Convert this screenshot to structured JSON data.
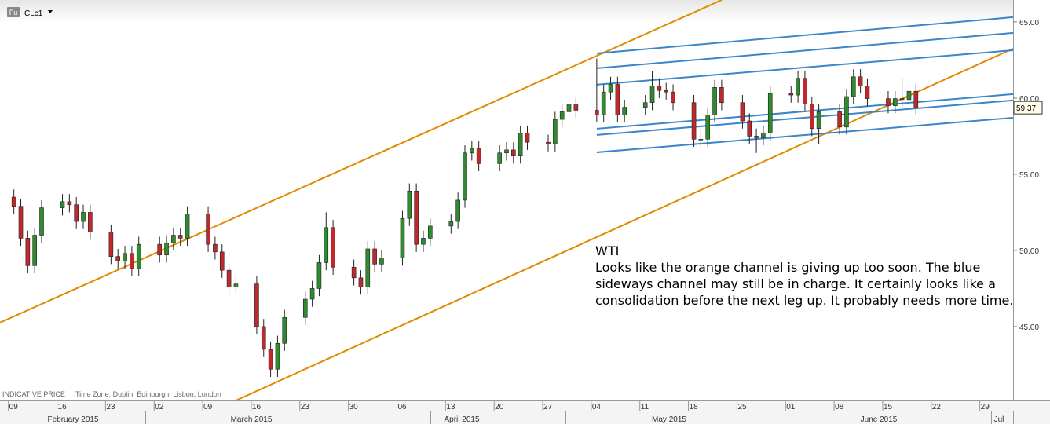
{
  "chart_data": {
    "type": "candlestick",
    "badge": "Fu",
    "symbol": "CLc1",
    "footer_left": "INDICATIVE PRICE",
    "timezone": "Time Zone: Dublin, Edinburgh, Lisbon, London",
    "annotation": {
      "title": "WTI",
      "text": "Looks like the orange channel is giving up too soon. The blue sideways channel may still be in charge. It certainly looks like a consolidation before the next leg up. It probably needs more time."
    },
    "up_color": "#2e8b2e",
    "down_color": "#c0282b",
    "xlim": [
      "2015-02-07",
      "2015-07-03"
    ],
    "ylim": [
      40.15,
      66.44
    ],
    "yticks": [
      {
        "value": 45,
        "label": "45.00"
      },
      {
        "value": 50,
        "label": "50.00"
      },
      {
        "value": 55,
        "label": "55.00"
      },
      {
        "value": 60,
        "label": "60.00"
      },
      {
        "value": 65,
        "label": "65.00"
      }
    ],
    "xticks": [
      {
        "value": "2015-02-09",
        "label": "09"
      },
      {
        "value": "2015-02-16",
        "label": "16"
      },
      {
        "value": "2015-02-23",
        "label": "23"
      },
      {
        "value": "2015-03-02",
        "label": "02"
      },
      {
        "value": "2015-03-09",
        "label": "09"
      },
      {
        "value": "2015-03-16",
        "label": "16"
      },
      {
        "value": "2015-03-23",
        "label": "23"
      },
      {
        "value": "2015-03-30",
        "label": "30"
      },
      {
        "value": "2015-04-06",
        "label": "06"
      },
      {
        "value": "2015-04-13",
        "label": "13"
      },
      {
        "value": "2015-04-20",
        "label": "20"
      },
      {
        "value": "2015-04-27",
        "label": "27"
      },
      {
        "value": "2015-05-04",
        "label": "04"
      },
      {
        "value": "2015-05-11",
        "label": "11"
      },
      {
        "value": "2015-05-18",
        "label": "18"
      },
      {
        "value": "2015-05-25",
        "label": "25"
      },
      {
        "value": "2015-06-01",
        "label": "01"
      },
      {
        "value": "2015-06-08",
        "label": "08"
      },
      {
        "value": "2015-06-15",
        "label": "15"
      },
      {
        "value": "2015-06-22",
        "label": "22"
      },
      {
        "value": "2015-06-29",
        "label": "29"
      }
    ],
    "months": [
      "February 2015",
      "March 2015",
      "April 2015",
      "May 2015",
      "June 2015",
      "Jul"
    ],
    "x": [
      "2015-02-09",
      "2015-02-10",
      "2015-02-11",
      "2015-02-12",
      "2015-02-13",
      "2015-02-16",
      "2015-02-17",
      "2015-02-18",
      "2015-02-19",
      "2015-02-20",
      "2015-02-23",
      "2015-02-24",
      "2015-02-25",
      "2015-02-26",
      "2015-02-27",
      "2015-03-02",
      "2015-03-03",
      "2015-03-04",
      "2015-03-05",
      "2015-03-06",
      "2015-03-09",
      "2015-03-10",
      "2015-03-11",
      "2015-03-12",
      "2015-03-13",
      "2015-03-16",
      "2015-03-17",
      "2015-03-18",
      "2015-03-19",
      "2015-03-20",
      "2015-03-23",
      "2015-03-24",
      "2015-03-25",
      "2015-03-26",
      "2015-03-27",
      "2015-03-30",
      "2015-03-31",
      "2015-04-01",
      "2015-04-02",
      "2015-04-03",
      "2015-04-06",
      "2015-04-07",
      "2015-04-08",
      "2015-04-09",
      "2015-04-10",
      "2015-04-13",
      "2015-04-14",
      "2015-04-15",
      "2015-04-16",
      "2015-04-17",
      "2015-04-20",
      "2015-04-21",
      "2015-04-22",
      "2015-04-23",
      "2015-04-24",
      "2015-04-27",
      "2015-04-28",
      "2015-04-29",
      "2015-04-30",
      "2015-05-01",
      "2015-05-04",
      "2015-05-05",
      "2015-05-06",
      "2015-05-07",
      "2015-05-08",
      "2015-05-11",
      "2015-05-12",
      "2015-05-13",
      "2015-05-14",
      "2015-05-15",
      "2015-05-18",
      "2015-05-19",
      "2015-05-20",
      "2015-05-21",
      "2015-05-22",
      "2015-05-25",
      "2015-05-26",
      "2015-05-27",
      "2015-05-28",
      "2015-05-29",
      "2015-06-01",
      "2015-06-02",
      "2015-06-03",
      "2015-06-04",
      "2015-06-05",
      "2015-06-08",
      "2015-06-09",
      "2015-06-10",
      "2015-06-11",
      "2015-06-12",
      "2015-06-15",
      "2015-06-16",
      "2015-06-17",
      "2015-06-18",
      "2015-06-19"
    ],
    "open": [
      53.5,
      52.9,
      50.8,
      49.0,
      51.0,
      52.8,
      53.2,
      53.0,
      51.9,
      52.5,
      51.2,
      49.6,
      49.3,
      49.8,
      48.8,
      50.4,
      49.7,
      50.5,
      51.0,
      50.8,
      52.4,
      50.4,
      49.9,
      48.7,
      47.6,
      47.8,
      45.0,
      43.5,
      42.2,
      43.9,
      45.6,
      46.8,
      47.5,
      49.2,
      51.5,
      48.9,
      48.2,
      47.6,
      50.1,
      49.1,
      49.5,
      52.1,
      53.9,
      50.4,
      50.8,
      51.6,
      51.9,
      53.3,
      56.4,
      56.7,
      55.7,
      56.4,
      56.6,
      56.2,
      57.7,
      57.1,
      57.0,
      58.6,
      59.1,
      59.6,
      59.2,
      58.9,
      60.4,
      60.9,
      58.9,
      59.4,
      59.7,
      60.8,
      60.5,
      60.4,
      59.7,
      57.3,
      57.3,
      58.9,
      60.7,
      59.7,
      58.5,
      57.5,
      57.4,
      57.7,
      60.3,
      60.2,
      61.3,
      59.6,
      58.0,
      59.1,
      58.1,
      60.1,
      61.4,
      60.8,
      59.96,
      59.5,
      59.97,
      59.9,
      60.45
    ],
    "high": [
      54.0,
      53.4,
      51.3,
      51.5,
      53.3,
      53.7,
      53.7,
      53.5,
      53.0,
      53.0,
      51.7,
      50.1,
      50.3,
      50.3,
      50.9,
      50.9,
      51.0,
      51.5,
      51.5,
      52.9,
      52.9,
      50.9,
      50.4,
      49.2,
      48.3,
      48.3,
      45.5,
      44.0,
      44.4,
      46.1,
      47.3,
      48.0,
      49.7,
      52.5,
      52.0,
      49.4,
      48.7,
      50.6,
      50.6,
      50.0,
      52.6,
      54.4,
      54.4,
      51.3,
      52.1,
      52.4,
      53.8,
      56.9,
      57.2,
      57.2,
      56.9,
      57.1,
      57.1,
      58.2,
      58.2,
      57.6,
      59.1,
      59.6,
      60.1,
      60.1,
      62.6,
      60.9,
      61.4,
      61.4,
      59.9,
      60.2,
      61.8,
      61.3,
      61.0,
      60.9,
      60.2,
      57.8,
      59.4,
      61.2,
      61.2,
      60.2,
      59.0,
      58.0,
      58.2,
      60.8,
      60.8,
      61.8,
      61.8,
      60.1,
      59.6,
      59.6,
      60.6,
      61.9,
      61.9,
      61.3,
      60.46,
      60.47,
      61.3,
      60.95,
      60.95
    ],
    "low": [
      52.4,
      50.3,
      48.5,
      48.5,
      50.5,
      52.3,
      52.5,
      51.4,
      51.4,
      50.7,
      49.1,
      48.8,
      48.8,
      48.3,
      48.3,
      49.2,
      49.2,
      50.0,
      50.3,
      50.3,
      49.9,
      49.4,
      48.2,
      47.1,
      47.1,
      44.5,
      43.0,
      41.7,
      41.7,
      43.4,
      45.1,
      46.3,
      47.0,
      48.7,
      48.4,
      47.7,
      47.1,
      47.1,
      48.6,
      48.6,
      49.0,
      51.6,
      49.9,
      49.9,
      50.3,
      51.1,
      51.4,
      52.8,
      55.9,
      55.2,
      55.2,
      55.9,
      55.7,
      55.7,
      56.6,
      56.5,
      56.5,
      58.1,
      58.6,
      58.7,
      58.4,
      58.4,
      59.9,
      58.4,
      58.4,
      58.9,
      59.2,
      60.0,
      59.9,
      59.2,
      56.8,
      56.8,
      56.8,
      58.4,
      59.2,
      58.0,
      57.0,
      56.4,
      56.9,
      57.2,
      59.7,
      59.7,
      59.1,
      57.5,
      57.0,
      57.6,
      57.6,
      59.6,
      60.3,
      59.46,
      59.0,
      59.0,
      59.4,
      59.4,
      58.87
    ],
    "close": [
      52.9,
      50.8,
      49.0,
      51.0,
      52.8,
      53.2,
      53.0,
      51.9,
      52.5,
      51.2,
      49.6,
      49.3,
      49.8,
      48.8,
      50.4,
      49.7,
      50.5,
      51.0,
      50.8,
      52.4,
      50.4,
      49.9,
      48.7,
      47.6,
      47.8,
      45.0,
      43.5,
      42.2,
      43.9,
      45.6,
      46.8,
      47.5,
      49.2,
      51.5,
      48.9,
      48.2,
      47.6,
      50.1,
      49.1,
      49.5,
      52.1,
      53.9,
      50.4,
      50.8,
      51.6,
      51.9,
      53.3,
      56.4,
      56.7,
      55.7,
      56.4,
      56.6,
      56.2,
      57.7,
      57.1,
      57.0,
      58.6,
      59.1,
      59.6,
      59.2,
      58.9,
      60.4,
      60.9,
      58.9,
      59.4,
      59.7,
      60.8,
      60.5,
      60.4,
      59.7,
      57.3,
      57.3,
      58.9,
      60.7,
      59.7,
      58.5,
      57.5,
      57.4,
      57.7,
      60.3,
      60.2,
      61.3,
      59.6,
      58.0,
      59.1,
      58.1,
      60.1,
      61.4,
      60.8,
      59.96,
      59.5,
      59.97,
      59.9,
      60.45,
      59.37
    ],
    "trendlines": [
      {
        "color": "#e08a00",
        "points": [
          [
            "2015-02-07",
            45.26
          ],
          [
            "2015-05-22",
            66.44
          ]
        ]
      },
      {
        "color": "#e08a00",
        "points": [
          [
            "2015-03-13",
            40.15
          ],
          [
            "2015-07-03",
            63.25
          ]
        ]
      },
      {
        "color": "#3a86c8",
        "points": [
          [
            "2015-05-04",
            62.94
          ],
          [
            "2015-07-03",
            65.31
          ]
        ]
      },
      {
        "color": "#3a86c8",
        "points": [
          [
            "2015-05-04",
            61.96
          ],
          [
            "2015-07-03",
            64.28
          ]
        ]
      },
      {
        "color": "#3a86c8",
        "points": [
          [
            "2015-05-04",
            60.88
          ],
          [
            "2015-07-03",
            63.14
          ]
        ]
      },
      {
        "color": "#3a86c8",
        "points": [
          [
            "2015-05-04",
            57.99
          ],
          [
            "2015-07-03",
            60.26
          ]
        ]
      },
      {
        "color": "#3a86c8",
        "points": [
          [
            "2015-05-04",
            57.58
          ],
          [
            "2015-07-03",
            59.85
          ]
        ]
      },
      {
        "color": "#3a86c8",
        "points": [
          [
            "2015-05-04",
            56.44
          ],
          [
            "2015-07-03",
            58.71
          ]
        ]
      }
    ]
  }
}
